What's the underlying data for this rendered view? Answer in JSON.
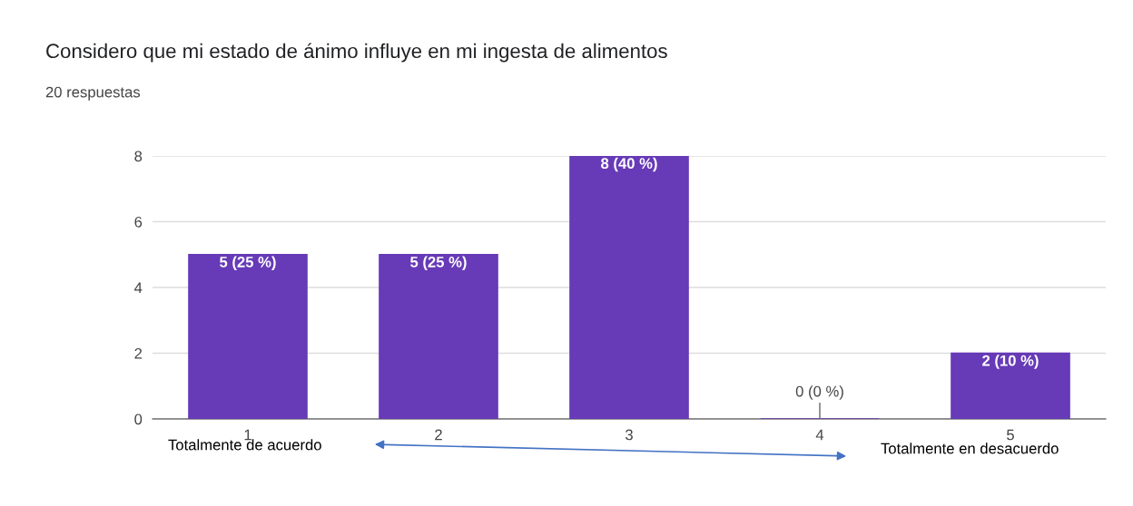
{
  "chart_data": {
    "type": "bar",
    "title": "Considero que mi estado de ánimo influye en mi ingesta de alimentos",
    "subtitle": "20 respuestas",
    "categories": [
      "1",
      "2",
      "3",
      "4",
      "5"
    ],
    "values": [
      5,
      5,
      8,
      0,
      2
    ],
    "value_labels": [
      "5 (25 %)",
      "5 (25 %)",
      "8 (40 %)",
      "0 (0 %)",
      "2 (10 %)"
    ],
    "color": "#673ab7",
    "ylim": [
      0,
      8
    ],
    "yticks": [
      0,
      2,
      4,
      6,
      8
    ],
    "grid": "y",
    "annotations": [
      "Totalmente de acuerdo",
      "Totalmente en desacuerdo"
    ]
  }
}
